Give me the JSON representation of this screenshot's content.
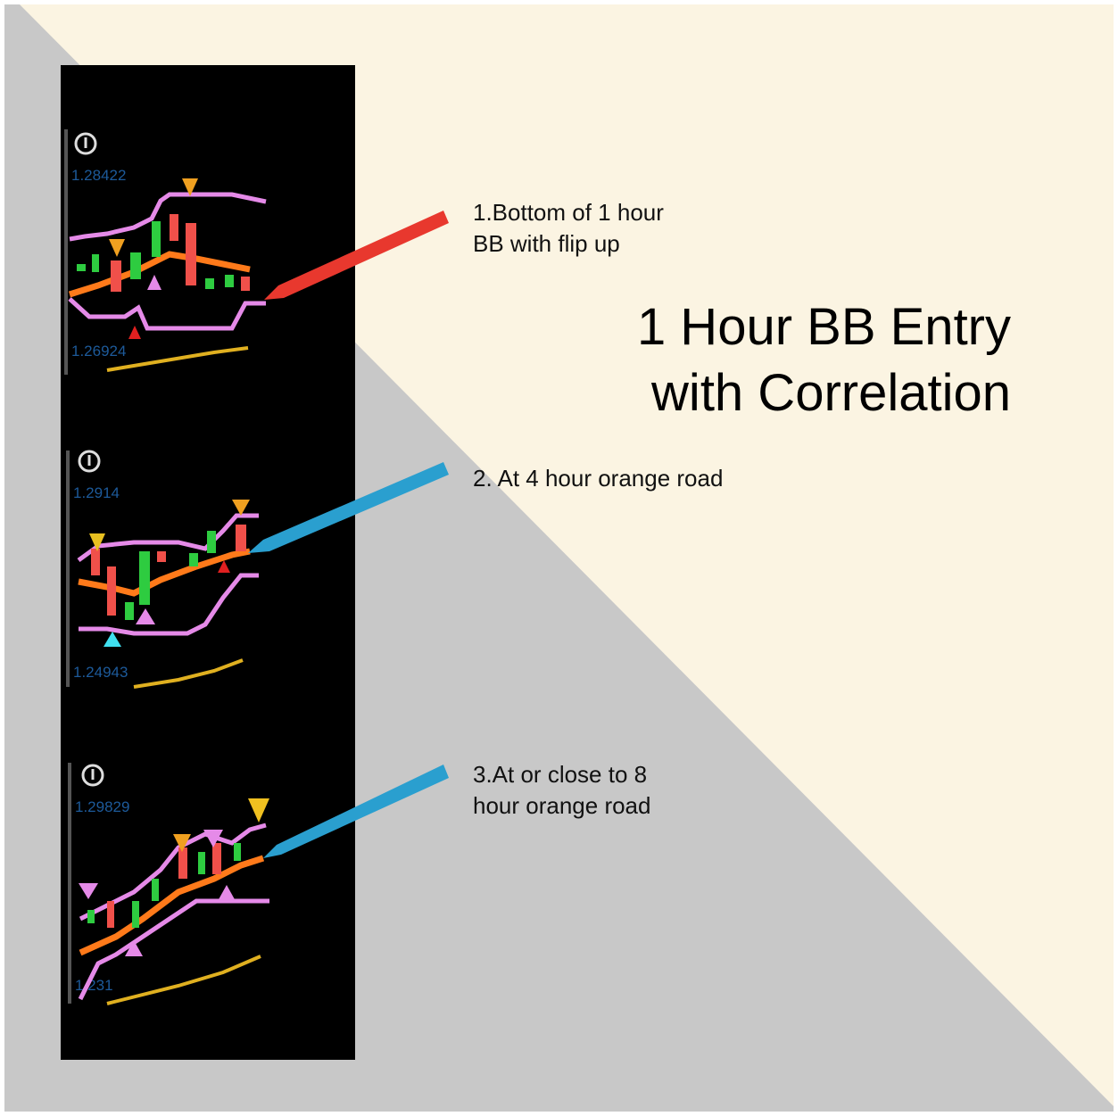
{
  "title": [
    "1 Hour BB Entry",
    "with Correlation"
  ],
  "annotations": [
    [
      "1.Bottom of 1 hour",
      "BB with flip up"
    ],
    [
      "2. At 4 hour orange road"
    ],
    [
      "3.At or close to 8",
      "hour orange road"
    ]
  ],
  "panels": [
    {
      "price_high": "1.28422",
      "price_low": "1.26924"
    },
    {
      "price_high": "1.2914",
      "price_low": "1.24943"
    },
    {
      "price_high": "1.29829",
      "price_low": "1.231"
    }
  ]
}
